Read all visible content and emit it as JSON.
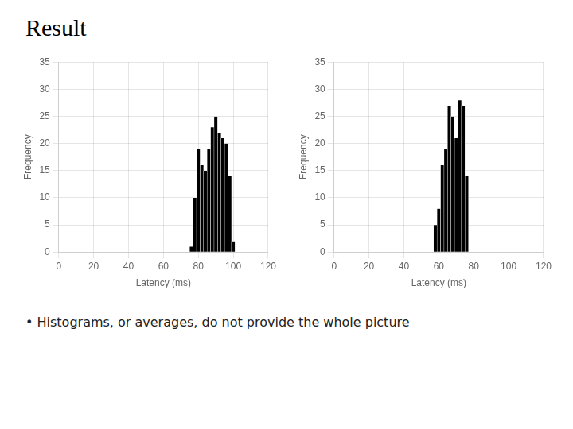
{
  "title": "Result",
  "annotation": "•  Histograms, or averages, do not provide the whole picture",
  "chart_data": [
    {
      "type": "histogram",
      "xlabel": "Latency (ms)",
      "ylabel": "Frequency",
      "bins": [
        75,
        77,
        79,
        81,
        83,
        85,
        87,
        89,
        91,
        93,
        95,
        97,
        99,
        101
      ],
      "values": [
        1,
        10,
        19,
        16,
        15,
        19,
        23,
        25,
        22,
        21,
        20,
        14,
        2
      ],
      "color": "#000000",
      "xlim": [
        0,
        120
      ],
      "ylim": [
        0,
        35
      ],
      "xticks": [
        0,
        20,
        40,
        60,
        80,
        100,
        120
      ],
      "yticks": [
        0,
        5,
        10,
        15,
        20,
        25,
        30,
        35
      ],
      "grid": true
    },
    {
      "type": "histogram",
      "xlabel": "Latency (ms)",
      "ylabel": "Frequency",
      "bins": [
        57,
        59,
        61,
        63,
        65,
        67,
        69,
        71,
        73,
        75,
        77
      ],
      "values": [
        5,
        8,
        16,
        19,
        27,
        25,
        21,
        28,
        27,
        14
      ],
      "color": "#000000",
      "xlim": [
        0,
        120
      ],
      "ylim": [
        0,
        35
      ],
      "xticks": [
        0,
        20,
        40,
        60,
        80,
        100,
        120
      ],
      "yticks": [
        0,
        5,
        10,
        15,
        20,
        25,
        30,
        35
      ],
      "grid": true
    }
  ]
}
